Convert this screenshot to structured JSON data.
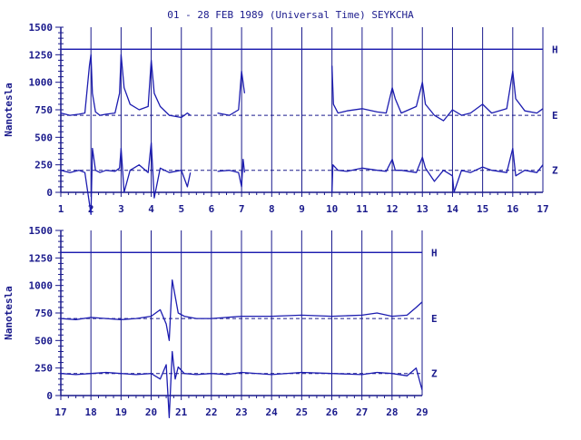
{
  "colors": {
    "ink": "#1a1a8c",
    "trace": "#1c1cb0",
    "background": "#ffffff"
  },
  "title": "01 - 28 FEB 1989 (Universal Time) SEYKCHA",
  "chart_data": [
    {
      "type": "line",
      "panel": "top",
      "ylabel": "Nanotesla",
      "ylim": [
        0,
        1500
      ],
      "yticks": [
        "0",
        "250",
        "500",
        "750",
        "1000",
        "1250",
        "1500"
      ],
      "xlim": [
        1,
        17
      ],
      "xticks": [
        "1",
        "2",
        "3",
        "4",
        "5",
        "6",
        "7",
        "8",
        "9",
        "10",
        "11",
        "12",
        "13",
        "14",
        "15",
        "16",
        "17"
      ],
      "baselines": [
        {
          "name": "H",
          "value": 1300
        },
        {
          "name": "E",
          "value": 700
        },
        {
          "name": "Z",
          "value": 200
        }
      ],
      "grid": "vertical lines at each day",
      "series": [
        {
          "name": "H",
          "x": [
            1,
            17
          ],
          "y": [
            1300,
            1300
          ]
        },
        {
          "name": "E",
          "x": [
            1.0,
            1.3,
            1.6,
            1.8,
            1.95,
            2.0,
            2.05,
            2.15,
            2.3,
            2.5,
            2.8,
            2.95,
            3.0,
            3.1,
            3.3,
            3.6,
            3.9,
            4.0,
            4.1,
            4.3,
            4.6,
            5.0,
            5.2,
            5.3,
            null,
            6.2,
            6.6,
            6.9,
            7.0,
            7.1,
            null,
            10.0,
            10.05,
            10.2,
            10.5,
            11.0,
            11.5,
            11.8,
            12.0,
            12.1,
            12.3,
            12.8,
            13.0,
            13.1,
            13.4,
            13.7,
            14.0,
            14.3,
            14.6,
            15.0,
            15.3,
            15.8,
            16.0,
            16.1,
            16.4,
            16.8,
            17.0
          ],
          "y": [
            720,
            700,
            710,
            720,
            1150,
            1250,
            900,
            730,
            700,
            710,
            720,
            900,
            1250,
            950,
            800,
            750,
            780,
            1200,
            900,
            780,
            700,
            680,
            720,
            700,
            null,
            720,
            700,
            750,
            1100,
            900,
            null,
            1150,
            800,
            720,
            740,
            760,
            730,
            720,
            950,
            850,
            720,
            780,
            1000,
            800,
            700,
            650,
            750,
            700,
            720,
            800,
            720,
            760,
            1100,
            850,
            740,
            720,
            760
          ]
        },
        {
          "name": "Z",
          "x": [
            1.0,
            1.3,
            1.6,
            1.8,
            1.95,
            2.0,
            2.05,
            2.15,
            2.3,
            2.5,
            2.8,
            2.95,
            3.0,
            3.1,
            3.3,
            3.6,
            3.9,
            4.0,
            4.1,
            4.3,
            4.6,
            5.0,
            5.2,
            5.3,
            null,
            6.2,
            6.6,
            6.9,
            7.0,
            7.05,
            7.1,
            null,
            10.0,
            10.03,
            10.2,
            10.5,
            11.0,
            11.5,
            11.8,
            12.0,
            12.1,
            12.3,
            12.8,
            13.0,
            13.1,
            13.4,
            13.7,
            14.0,
            14.05,
            14.3,
            14.6,
            15.0,
            15.3,
            15.8,
            16.0,
            16.1,
            16.4,
            16.8,
            17.0
          ],
          "y": [
            200,
            180,
            200,
            180,
            -100,
            -200,
            400,
            200,
            180,
            200,
            190,
            220,
            400,
            0,
            200,
            250,
            180,
            450,
            -50,
            220,
            180,
            200,
            50,
            180,
            null,
            190,
            200,
            180,
            50,
            300,
            180,
            null,
            0,
            250,
            200,
            190,
            220,
            200,
            190,
            300,
            200,
            200,
            180,
            320,
            220,
            100,
            200,
            150,
            0,
            200,
            180,
            230,
            200,
            180,
            400,
            150,
            200,
            180,
            250
          ]
        }
      ]
    },
    {
      "type": "line",
      "panel": "bottom",
      "ylabel": "Nanotesla",
      "ylim": [
        0,
        1500
      ],
      "yticks": [
        "0",
        "250",
        "500",
        "750",
        "1000",
        "1250",
        "1500"
      ],
      "xlim": [
        17,
        29
      ],
      "xticks": [
        "17",
        "18",
        "19",
        "20",
        "21",
        "22",
        "23",
        "24",
        "25",
        "26",
        "27",
        "28",
        "29"
      ],
      "baselines": [
        {
          "name": "H",
          "value": 1300
        },
        {
          "name": "E",
          "value": 700
        },
        {
          "name": "Z",
          "value": 200
        }
      ],
      "grid": "vertical lines at each day",
      "series": [
        {
          "name": "H",
          "x": [
            17,
            29
          ],
          "y": [
            1300,
            1300
          ]
        },
        {
          "name": "E",
          "x": [
            17.0,
            17.5,
            18.0,
            18.5,
            19.0,
            19.5,
            20.0,
            20.3,
            20.5,
            20.6,
            20.7,
            20.8,
            20.9,
            21.1,
            21.5,
            22.0,
            22.5,
            23.0,
            24.0,
            25.0,
            26.0,
            27.0,
            27.5,
            28.0,
            28.5,
            28.8,
            29.0
          ],
          "y": [
            700,
            690,
            710,
            700,
            690,
            700,
            720,
            780,
            650,
            500,
            1050,
            900,
            750,
            720,
            700,
            700,
            710,
            720,
            720,
            730,
            720,
            730,
            750,
            720,
            730,
            800,
            850
          ]
        },
        {
          "name": "Z",
          "x": [
            17.0,
            17.5,
            18.0,
            18.5,
            19.0,
            19.5,
            20.0,
            20.3,
            20.5,
            20.6,
            20.7,
            20.8,
            20.9,
            21.1,
            21.5,
            22.0,
            22.5,
            23.0,
            24.0,
            25.0,
            26.0,
            27.0,
            27.5,
            28.0,
            28.5,
            28.8,
            29.0
          ],
          "y": [
            200,
            190,
            200,
            210,
            200,
            190,
            200,
            150,
            280,
            -200,
            400,
            150,
            260,
            200,
            190,
            200,
            190,
            210,
            190,
            210,
            200,
            190,
            210,
            200,
            180,
            250,
            50
          ]
        }
      ]
    }
  ]
}
